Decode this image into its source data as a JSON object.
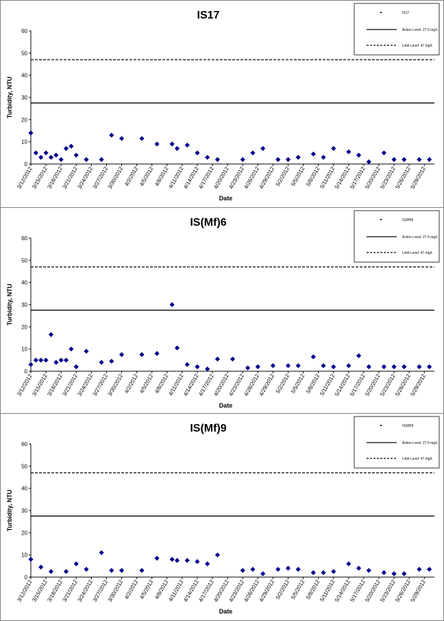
{
  "chart_data": [
    {
      "type": "scatter",
      "title": "IS17",
      "xlabel": "Date",
      "ylabel": "Turbidity, NTU",
      "ylim": [
        0,
        60
      ],
      "yticks": [
        0,
        10,
        20,
        30,
        40,
        50,
        60
      ],
      "xlim": [
        "3/12/2012",
        "5/31/2012"
      ],
      "xticks": [
        "3/12/2012",
        "3/15/2012",
        "3/18/2012",
        "3/21/2012",
        "3/24/2012",
        "3/27/2012",
        "3/30/2012",
        "4/2/2012",
        "4/5/2012",
        "4/8/2012",
        "4/11/2012",
        "4/14/2012",
        "4/17/2012",
        "4/20/2012",
        "4/23/2012",
        "4/26/2012",
        "4/29/2012",
        "5/2/2012",
        "5/5/2012",
        "5/8/2012",
        "5/11/2012",
        "5/14/2012",
        "5/17/2012",
        "5/20/2012",
        "5/23/2012",
        "5/26/2012",
        "5/29/2012"
      ],
      "grid": false,
      "legend_position": "top-right",
      "series": [
        {
          "name": "IS17",
          "kind": "points",
          "color": "#00008b",
          "x": [
            "3/12/2012",
            "3/13/2012",
            "3/14/2012",
            "3/15/2012",
            "3/16/2012",
            "3/17/2012",
            "3/18/2012",
            "3/19/2012",
            "3/20/2012",
            "3/21/2012",
            "3/23/2012",
            "3/26/2012",
            "3/28/2012",
            "3/30/2012",
            "4/3/2012",
            "4/6/2012",
            "4/9/2012",
            "4/10/2012",
            "4/12/2012",
            "4/14/2012",
            "4/16/2012",
            "4/18/2012",
            "4/23/2012",
            "4/25/2012",
            "4/27/2012",
            "4/30/2012",
            "5/2/2012",
            "5/4/2012",
            "5/7/2012",
            "5/9/2012",
            "5/11/2012",
            "5/14/2012",
            "5/16/2012",
            "5/18/2012",
            "5/21/2012",
            "5/23/2012",
            "5/25/2012",
            "5/28/2012",
            "5/30/2012"
          ],
          "y": [
            14,
            5,
            3,
            5,
            3,
            4,
            2,
            7,
            8,
            4,
            2,
            2,
            13,
            11.5,
            11.5,
            9,
            9,
            7,
            8.5,
            5,
            3,
            2,
            2,
            5,
            7,
            2,
            2,
            3,
            4.5,
            3,
            7,
            5.5,
            4,
            1,
            5,
            2,
            2,
            2,
            2
          ]
        },
        {
          "name": "Action Level: 27.5 mg/L",
          "kind": "line",
          "style": "solid",
          "value": 27.5
        },
        {
          "name": "Limit Level: 47 mg/L",
          "kind": "line",
          "style": "dashed",
          "value": 47
        }
      ]
    },
    {
      "type": "scatter",
      "title": "IS(Mf)6",
      "xlabel": "Date",
      "ylabel": "Turbidity, NTU",
      "ylim": [
        0,
        60
      ],
      "yticks": [
        0,
        10,
        20,
        30,
        40,
        50,
        60
      ],
      "xlim": [
        "3/12/2012",
        "5/31/2012"
      ],
      "xticks": [
        "3/12/2012",
        "3/15/2012",
        "3/18/2012",
        "3/21/2012",
        "3/24/2012",
        "3/27/2012",
        "3/30/2012",
        "4/2/2012",
        "4/5/2012",
        "4/8/2012",
        "4/11/2012",
        "4/14/2012",
        "4/17/2012",
        "4/20/2012",
        "4/23/2012",
        "4/26/2012",
        "4/29/2012",
        "5/2/2012",
        "5/5/2012",
        "5/8/2012",
        "5/11/2012",
        "5/14/2012",
        "5/17/2012",
        "5/20/2012",
        "5/23/2012",
        "5/26/2012",
        "5/29/2012"
      ],
      "grid": false,
      "legend_position": "top-right",
      "series": [
        {
          "name": "IS(Mf)6",
          "kind": "points",
          "color": "#00008b",
          "x": [
            "3/12/2012",
            "3/13/2012",
            "3/14/2012",
            "3/15/2012",
            "3/16/2012",
            "3/17/2012",
            "3/18/2012",
            "3/19/2012",
            "3/20/2012",
            "3/21/2012",
            "3/23/2012",
            "3/26/2012",
            "3/28/2012",
            "3/30/2012",
            "4/3/2012",
            "4/6/2012",
            "4/9/2012",
            "4/10/2012",
            "4/12/2012",
            "4/14/2012",
            "4/16/2012",
            "4/18/2012",
            "4/21/2012",
            "4/24/2012",
            "4/26/2012",
            "4/29/2012",
            "5/2/2012",
            "5/4/2012",
            "5/7/2012",
            "5/9/2012",
            "5/11/2012",
            "5/14/2012",
            "5/16/2012",
            "5/18/2012",
            "5/21/2012",
            "5/23/2012",
            "5/25/2012",
            "5/28/2012",
            "5/30/2012"
          ],
          "y": [
            3,
            5,
            5,
            5,
            16.5,
            4,
            5,
            5,
            10,
            2,
            9,
            4,
            4.5,
            7.5,
            7.5,
            8,
            30,
            10.5,
            3,
            2,
            1,
            5.5,
            5.5,
            1.5,
            2,
            2.5,
            2.5,
            2.5,
            6.5,
            2.5,
            2,
            2.5,
            7,
            2,
            2,
            2,
            2,
            2,
            2
          ]
        },
        {
          "name": "Action Level: 27.5 mg/L",
          "kind": "line",
          "style": "solid",
          "value": 27.5
        },
        {
          "name": "Limit Level: 47 mg/L",
          "kind": "line",
          "style": "dashed",
          "value": 47
        }
      ]
    },
    {
      "type": "scatter",
      "title": "IS(Mf)9",
      "xlabel": "Date",
      "ylabel": "Turbidity, NTU",
      "ylim": [
        0,
        60
      ],
      "yticks": [
        0,
        10,
        20,
        30,
        40,
        50,
        60
      ],
      "xlim": [
        "3/12/2012",
        "5/31/2012"
      ],
      "xticks": [
        "3/12/2012",
        "3/15/2012",
        "3/18/2012",
        "3/21/2012",
        "3/24/2012",
        "3/27/2012",
        "3/30/2012",
        "4/2/2012",
        "4/5/2012",
        "4/8/2012",
        "4/11/2012",
        "4/14/2012",
        "4/17/2012",
        "4/20/2012",
        "4/23/2012",
        "4/26/2012",
        "4/29/2012",
        "5/2/2012",
        "5/5/2012",
        "5/8/2012",
        "5/11/2012",
        "5/14/2012",
        "5/17/2012",
        "5/20/2012",
        "5/23/2012",
        "5/26/2012",
        "5/29/2012"
      ],
      "grid": false,
      "legend_position": "top-right",
      "series": [
        {
          "name": "IS(Mf)9",
          "kind": "points",
          "color": "#00008b",
          "x": [
            "3/12/2012",
            "3/14/2012",
            "3/16/2012",
            "3/19/2012",
            "3/21/2012",
            "3/23/2012",
            "3/26/2012",
            "3/28/2012",
            "3/30/2012",
            "4/3/2012",
            "4/6/2012",
            "4/9/2012",
            "4/10/2012",
            "4/12/2012",
            "4/14/2012",
            "4/16/2012",
            "4/18/2012",
            "4/23/2012",
            "4/25/2012",
            "4/27/2012",
            "4/30/2012",
            "5/2/2012",
            "5/4/2012",
            "5/7/2012",
            "5/9/2012",
            "5/11/2012",
            "5/14/2012",
            "5/16/2012",
            "5/18/2012",
            "5/21/2012",
            "5/23/2012",
            "5/25/2012",
            "5/28/2012",
            "5/30/2012"
          ],
          "y": [
            8,
            4.5,
            2.5,
            2.5,
            6,
            3.5,
            11,
            3,
            3,
            3,
            8.5,
            8,
            7.5,
            7.5,
            7,
            6,
            10,
            3,
            3.5,
            1.5,
            3.5,
            4,
            3.5,
            2,
            2,
            2.5,
            6,
            4,
            3,
            2,
            1.5,
            1.5,
            3.5,
            3.5
          ]
        },
        {
          "name": "Action Level: 27.5 mg/L",
          "kind": "line",
          "style": "solid",
          "value": 27.5
        },
        {
          "name": "Limit Level: 47 mg/L",
          "kind": "line",
          "style": "dashed",
          "value": 47
        }
      ]
    }
  ]
}
